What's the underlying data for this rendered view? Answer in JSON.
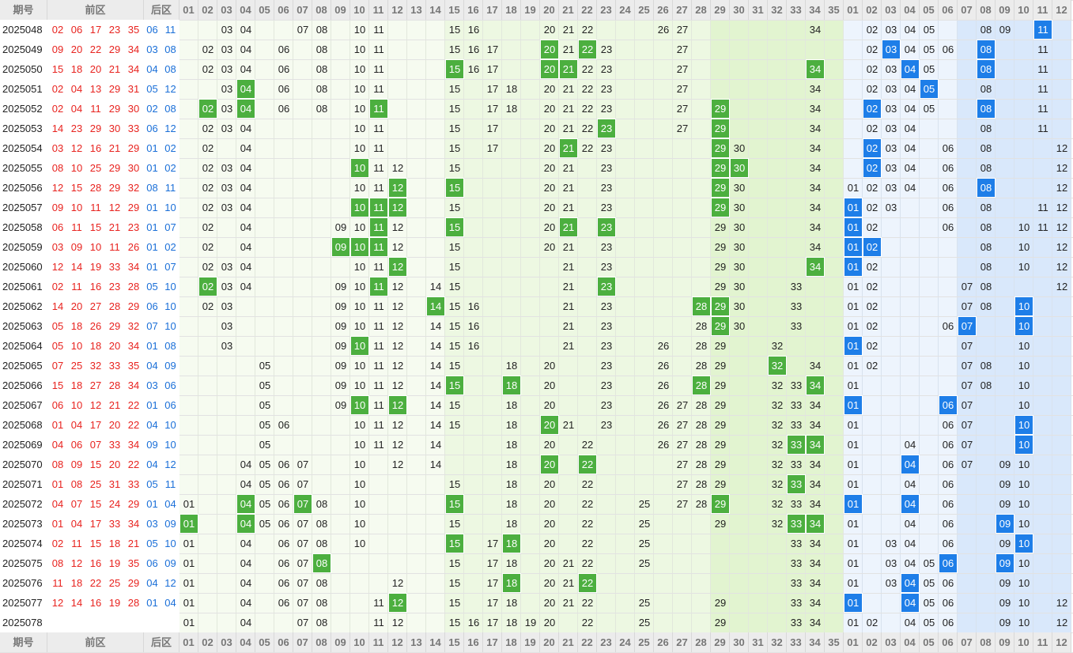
{
  "header": {
    "issue": "期号",
    "front": "前区",
    "back": "后区",
    "front_numbers": [
      "01",
      "02",
      "03",
      "04",
      "05",
      "06",
      "07",
      "08",
      "09",
      "10",
      "11",
      "12",
      "13",
      "14",
      "15",
      "16",
      "17",
      "18",
      "19",
      "20",
      "21",
      "22",
      "23",
      "24",
      "25",
      "26",
      "27",
      "28",
      "29",
      "30",
      "31",
      "32",
      "33",
      "34",
      "35"
    ],
    "back_numbers": [
      "01",
      "02",
      "03",
      "04",
      "05",
      "06",
      "07",
      "08",
      "09",
      "10",
      "11",
      "12"
    ]
  },
  "rows": [
    {
      "issue": "2025048",
      "front": [
        "02",
        "06",
        "17",
        "23",
        "35"
      ],
      "back": [
        "06",
        "11"
      ],
      "front_trend": [
        "03",
        "04",
        "07",
        "08",
        "10",
        "11",
        "15",
        "16",
        "20",
        "21",
        "22",
        "26",
        "27",
        "34"
      ],
      "back_trend": [
        "02",
        "03",
        "04",
        "05",
        "08",
        "09",
        "11"
      ]
    },
    {
      "issue": "2025049",
      "front": [
        "09",
        "20",
        "22",
        "29",
        "34"
      ],
      "back": [
        "03",
        "08"
      ],
      "front_trend": [
        "02",
        "03",
        "04",
        "06",
        "08",
        "10",
        "11",
        "15",
        "16",
        "17",
        "20",
        "21",
        "22",
        "23",
        "27"
      ],
      "back_trend": [
        "02",
        "03",
        "04",
        "05",
        "06",
        "08",
        "11"
      ]
    },
    {
      "issue": "2025050",
      "front": [
        "15",
        "18",
        "20",
        "21",
        "34"
      ],
      "back": [
        "04",
        "08"
      ],
      "front_trend": [
        "02",
        "03",
        "04",
        "06",
        "08",
        "10",
        "11",
        "15",
        "16",
        "17",
        "20",
        "21",
        "22",
        "23",
        "27",
        "34"
      ],
      "back_trend": [
        "02",
        "03",
        "04",
        "05",
        "08",
        "11"
      ]
    },
    {
      "issue": "2025051",
      "front": [
        "02",
        "04",
        "13",
        "29",
        "31"
      ],
      "back": [
        "05",
        "12"
      ],
      "front_trend": [
        "03",
        "04",
        "06",
        "08",
        "10",
        "11",
        "15",
        "17",
        "18",
        "20",
        "21",
        "22",
        "23",
        "27",
        "34"
      ],
      "back_trend": [
        "02",
        "03",
        "04",
        "05",
        "08",
        "11"
      ]
    },
    {
      "issue": "2025052",
      "front": [
        "02",
        "04",
        "11",
        "29",
        "30"
      ],
      "back": [
        "02",
        "08"
      ],
      "front_trend": [
        "02",
        "03",
        "04",
        "06",
        "08",
        "10",
        "11",
        "15",
        "17",
        "18",
        "20",
        "21",
        "22",
        "23",
        "27",
        "29",
        "34"
      ],
      "back_trend": [
        "02",
        "03",
        "04",
        "05",
        "08",
        "11"
      ]
    },
    {
      "issue": "2025053",
      "front": [
        "14",
        "23",
        "29",
        "30",
        "33"
      ],
      "back": [
        "06",
        "12"
      ],
      "front_trend": [
        "02",
        "03",
        "04",
        "10",
        "11",
        "15",
        "17",
        "20",
        "21",
        "22",
        "23",
        "27",
        "29",
        "34"
      ],
      "back_trend": [
        "02",
        "03",
        "04",
        "08",
        "11"
      ]
    },
    {
      "issue": "2025054",
      "front": [
        "03",
        "12",
        "16",
        "21",
        "29"
      ],
      "back": [
        "01",
        "02"
      ],
      "front_trend": [
        "02",
        "04",
        "10",
        "11",
        "15",
        "17",
        "20",
        "21",
        "22",
        "23",
        "29",
        "30",
        "34"
      ],
      "back_trend": [
        "02",
        "03",
        "04",
        "06",
        "08",
        "12"
      ]
    },
    {
      "issue": "2025055",
      "front": [
        "08",
        "10",
        "25",
        "29",
        "30"
      ],
      "back": [
        "01",
        "02"
      ],
      "front_trend": [
        "02",
        "03",
        "04",
        "10",
        "11",
        "12",
        "15",
        "20",
        "21",
        "23",
        "29",
        "30",
        "34"
      ],
      "back_trend": [
        "02",
        "03",
        "04",
        "06",
        "08",
        "12"
      ]
    },
    {
      "issue": "2025056",
      "front": [
        "12",
        "15",
        "28",
        "29",
        "32"
      ],
      "back": [
        "08",
        "11"
      ],
      "front_trend": [
        "02",
        "03",
        "04",
        "10",
        "11",
        "12",
        "15",
        "20",
        "21",
        "23",
        "29",
        "30",
        "34"
      ],
      "back_trend": [
        "01",
        "02",
        "03",
        "04",
        "06",
        "08",
        "12"
      ]
    },
    {
      "issue": "2025057",
      "front": [
        "09",
        "10",
        "11",
        "12",
        "29"
      ],
      "back": [
        "01",
        "10"
      ],
      "front_trend": [
        "02",
        "03",
        "04",
        "10",
        "11",
        "12",
        "15",
        "20",
        "21",
        "23",
        "29",
        "30",
        "34"
      ],
      "back_trend": [
        "01",
        "02",
        "03",
        "06",
        "08",
        "11",
        "12"
      ]
    },
    {
      "issue": "2025058",
      "front": [
        "06",
        "11",
        "15",
        "21",
        "23"
      ],
      "back": [
        "01",
        "07"
      ],
      "front_trend": [
        "02",
        "04",
        "09",
        "10",
        "11",
        "12",
        "15",
        "20",
        "21",
        "23",
        "29",
        "30",
        "34"
      ],
      "back_trend": [
        "01",
        "02",
        "06",
        "08",
        "10",
        "11",
        "12"
      ]
    },
    {
      "issue": "2025059",
      "front": [
        "03",
        "09",
        "10",
        "11",
        "26"
      ],
      "back": [
        "01",
        "02"
      ],
      "front_trend": [
        "02",
        "04",
        "09",
        "10",
        "11",
        "12",
        "15",
        "20",
        "21",
        "23",
        "29",
        "30",
        "34"
      ],
      "back_trend": [
        "01",
        "02",
        "08",
        "10",
        "12"
      ]
    },
    {
      "issue": "2025060",
      "front": [
        "12",
        "14",
        "19",
        "33",
        "34"
      ],
      "back": [
        "01",
        "07"
      ],
      "front_trend": [
        "02",
        "03",
        "04",
        "10",
        "11",
        "12",
        "15",
        "21",
        "23",
        "29",
        "30",
        "34"
      ],
      "back_trend": [
        "01",
        "02",
        "08",
        "10",
        "12"
      ]
    },
    {
      "issue": "2025061",
      "front": [
        "02",
        "11",
        "16",
        "23",
        "28"
      ],
      "back": [
        "05",
        "10"
      ],
      "front_trend": [
        "02",
        "03",
        "04",
        "09",
        "10",
        "11",
        "12",
        "14",
        "15",
        "21",
        "23",
        "29",
        "30",
        "33"
      ],
      "back_trend": [
        "01",
        "02",
        "07",
        "08",
        "12"
      ]
    },
    {
      "issue": "2025062",
      "front": [
        "14",
        "20",
        "27",
        "28",
        "29"
      ],
      "back": [
        "06",
        "10"
      ],
      "front_trend": [
        "02",
        "03",
        "09",
        "10",
        "11",
        "12",
        "14",
        "15",
        "16",
        "21",
        "23",
        "28",
        "29",
        "30",
        "33"
      ],
      "back_trend": [
        "01",
        "02",
        "07",
        "08",
        "10"
      ]
    },
    {
      "issue": "2025063",
      "front": [
        "05",
        "18",
        "26",
        "29",
        "32"
      ],
      "back": [
        "07",
        "10"
      ],
      "front_trend": [
        "03",
        "09",
        "10",
        "11",
        "12",
        "14",
        "15",
        "16",
        "21",
        "23",
        "28",
        "29",
        "30",
        "33"
      ],
      "back_trend": [
        "01",
        "02",
        "06",
        "07",
        "10"
      ]
    },
    {
      "issue": "2025064",
      "front": [
        "05",
        "10",
        "18",
        "20",
        "34"
      ],
      "back": [
        "01",
        "08"
      ],
      "front_trend": [
        "03",
        "09",
        "10",
        "11",
        "12",
        "14",
        "15",
        "16",
        "21",
        "23",
        "26",
        "28",
        "29",
        "32"
      ],
      "back_trend": [
        "01",
        "02",
        "07",
        "10"
      ]
    },
    {
      "issue": "2025065",
      "front": [
        "07",
        "25",
        "32",
        "33",
        "35"
      ],
      "back": [
        "04",
        "09"
      ],
      "front_trend": [
        "05",
        "09",
        "10",
        "11",
        "12",
        "14",
        "15",
        "18",
        "20",
        "23",
        "26",
        "28",
        "29",
        "32",
        "34"
      ],
      "back_trend": [
        "01",
        "02",
        "07",
        "08",
        "10"
      ]
    },
    {
      "issue": "2025066",
      "front": [
        "15",
        "18",
        "27",
        "28",
        "34"
      ],
      "back": [
        "03",
        "06"
      ],
      "front_trend": [
        "05",
        "09",
        "10",
        "11",
        "12",
        "14",
        "15",
        "18",
        "20",
        "23",
        "26",
        "28",
        "29",
        "32",
        "33",
        "34"
      ],
      "back_trend": [
        "01",
        "07",
        "08",
        "10"
      ]
    },
    {
      "issue": "2025067",
      "front": [
        "06",
        "10",
        "12",
        "21",
        "22"
      ],
      "back": [
        "01",
        "06"
      ],
      "front_trend": [
        "05",
        "09",
        "10",
        "11",
        "12",
        "14",
        "15",
        "18",
        "20",
        "23",
        "26",
        "27",
        "28",
        "29",
        "32",
        "33",
        "34"
      ],
      "back_trend": [
        "01",
        "06",
        "07",
        "10"
      ]
    },
    {
      "issue": "2025068",
      "front": [
        "01",
        "04",
        "17",
        "20",
        "22"
      ],
      "back": [
        "04",
        "10"
      ],
      "front_trend": [
        "05",
        "06",
        "10",
        "11",
        "12",
        "14",
        "15",
        "18",
        "20",
        "21",
        "23",
        "26",
        "27",
        "28",
        "29",
        "32",
        "33",
        "34"
      ],
      "back_trend": [
        "01",
        "06",
        "07",
        "10"
      ]
    },
    {
      "issue": "2025069",
      "front": [
        "04",
        "06",
        "07",
        "33",
        "34"
      ],
      "back": [
        "09",
        "10"
      ],
      "front_trend": [
        "05",
        "10",
        "11",
        "12",
        "14",
        "18",
        "20",
        "22",
        "26",
        "27",
        "28",
        "29",
        "32",
        "33",
        "34"
      ],
      "back_trend": [
        "01",
        "04",
        "06",
        "07",
        "10"
      ]
    },
    {
      "issue": "2025070",
      "front": [
        "08",
        "09",
        "15",
        "20",
        "22"
      ],
      "back": [
        "04",
        "12"
      ],
      "front_trend": [
        "04",
        "05",
        "06",
        "07",
        "10",
        "12",
        "14",
        "18",
        "20",
        "22",
        "27",
        "28",
        "29",
        "32",
        "33",
        "34"
      ],
      "back_trend": [
        "01",
        "04",
        "06",
        "07",
        "09",
        "10"
      ]
    },
    {
      "issue": "2025071",
      "front": [
        "01",
        "08",
        "25",
        "31",
        "33"
      ],
      "back": [
        "05",
        "11"
      ],
      "front_trend": [
        "04",
        "05",
        "06",
        "07",
        "10",
        "15",
        "18",
        "20",
        "22",
        "27",
        "28",
        "29",
        "32",
        "33",
        "34"
      ],
      "back_trend": [
        "01",
        "04",
        "06",
        "09",
        "10"
      ]
    },
    {
      "issue": "2025072",
      "front": [
        "04",
        "07",
        "15",
        "24",
        "29"
      ],
      "back": [
        "01",
        "04"
      ],
      "front_trend": [
        "01",
        "04",
        "05",
        "06",
        "07",
        "08",
        "10",
        "15",
        "18",
        "20",
        "22",
        "25",
        "27",
        "28",
        "29",
        "32",
        "33",
        "34"
      ],
      "back_trend": [
        "01",
        "04",
        "06",
        "09",
        "10"
      ]
    },
    {
      "issue": "2025073",
      "front": [
        "01",
        "04",
        "17",
        "33",
        "34"
      ],
      "back": [
        "03",
        "09"
      ],
      "front_trend": [
        "01",
        "04",
        "05",
        "06",
        "07",
        "08",
        "10",
        "15",
        "18",
        "20",
        "22",
        "25",
        "29",
        "32",
        "33",
        "34"
      ],
      "back_trend": [
        "01",
        "04",
        "06",
        "09",
        "10"
      ]
    },
    {
      "issue": "2025074",
      "front": [
        "02",
        "11",
        "15",
        "18",
        "21"
      ],
      "back": [
        "05",
        "10"
      ],
      "front_trend": [
        "01",
        "04",
        "06",
        "07",
        "08",
        "10",
        "15",
        "17",
        "18",
        "20",
        "22",
        "25",
        "33",
        "34"
      ],
      "back_trend": [
        "01",
        "03",
        "04",
        "06",
        "09",
        "10"
      ]
    },
    {
      "issue": "2025075",
      "front": [
        "08",
        "12",
        "16",
        "19",
        "35"
      ],
      "back": [
        "06",
        "09"
      ],
      "front_trend": [
        "01",
        "04",
        "06",
        "07",
        "08",
        "15",
        "17",
        "18",
        "20",
        "21",
        "22",
        "25",
        "33",
        "34"
      ],
      "back_trend": [
        "01",
        "03",
        "04",
        "05",
        "06",
        "09",
        "10"
      ]
    },
    {
      "issue": "2025076",
      "front": [
        "11",
        "18",
        "22",
        "25",
        "29"
      ],
      "back": [
        "04",
        "12"
      ],
      "front_trend": [
        "01",
        "04",
        "06",
        "07",
        "08",
        "12",
        "15",
        "17",
        "18",
        "20",
        "21",
        "22",
        "33",
        "34"
      ],
      "back_trend": [
        "01",
        "03",
        "04",
        "05",
        "06",
        "09",
        "10"
      ]
    },
    {
      "issue": "2025077",
      "front": [
        "12",
        "14",
        "16",
        "19",
        "28"
      ],
      "back": [
        "01",
        "04"
      ],
      "front_trend": [
        "01",
        "04",
        "06",
        "07",
        "08",
        "11",
        "12",
        "15",
        "17",
        "18",
        "20",
        "21",
        "22",
        "25",
        "29",
        "33",
        "34"
      ],
      "back_trend": [
        "01",
        "04",
        "05",
        "06",
        "09",
        "10",
        "12"
      ]
    },
    {
      "issue": "2025078",
      "front": [],
      "back": [],
      "front_trend": [
        "01",
        "04",
        "07",
        "08",
        "11",
        "12",
        "15",
        "16",
        "17",
        "18",
        "19",
        "20",
        "22",
        "25",
        "29",
        "33",
        "34"
      ],
      "back_trend": [
        "01",
        "02",
        "04",
        "05",
        "06",
        "09",
        "10",
        "12"
      ]
    }
  ]
}
